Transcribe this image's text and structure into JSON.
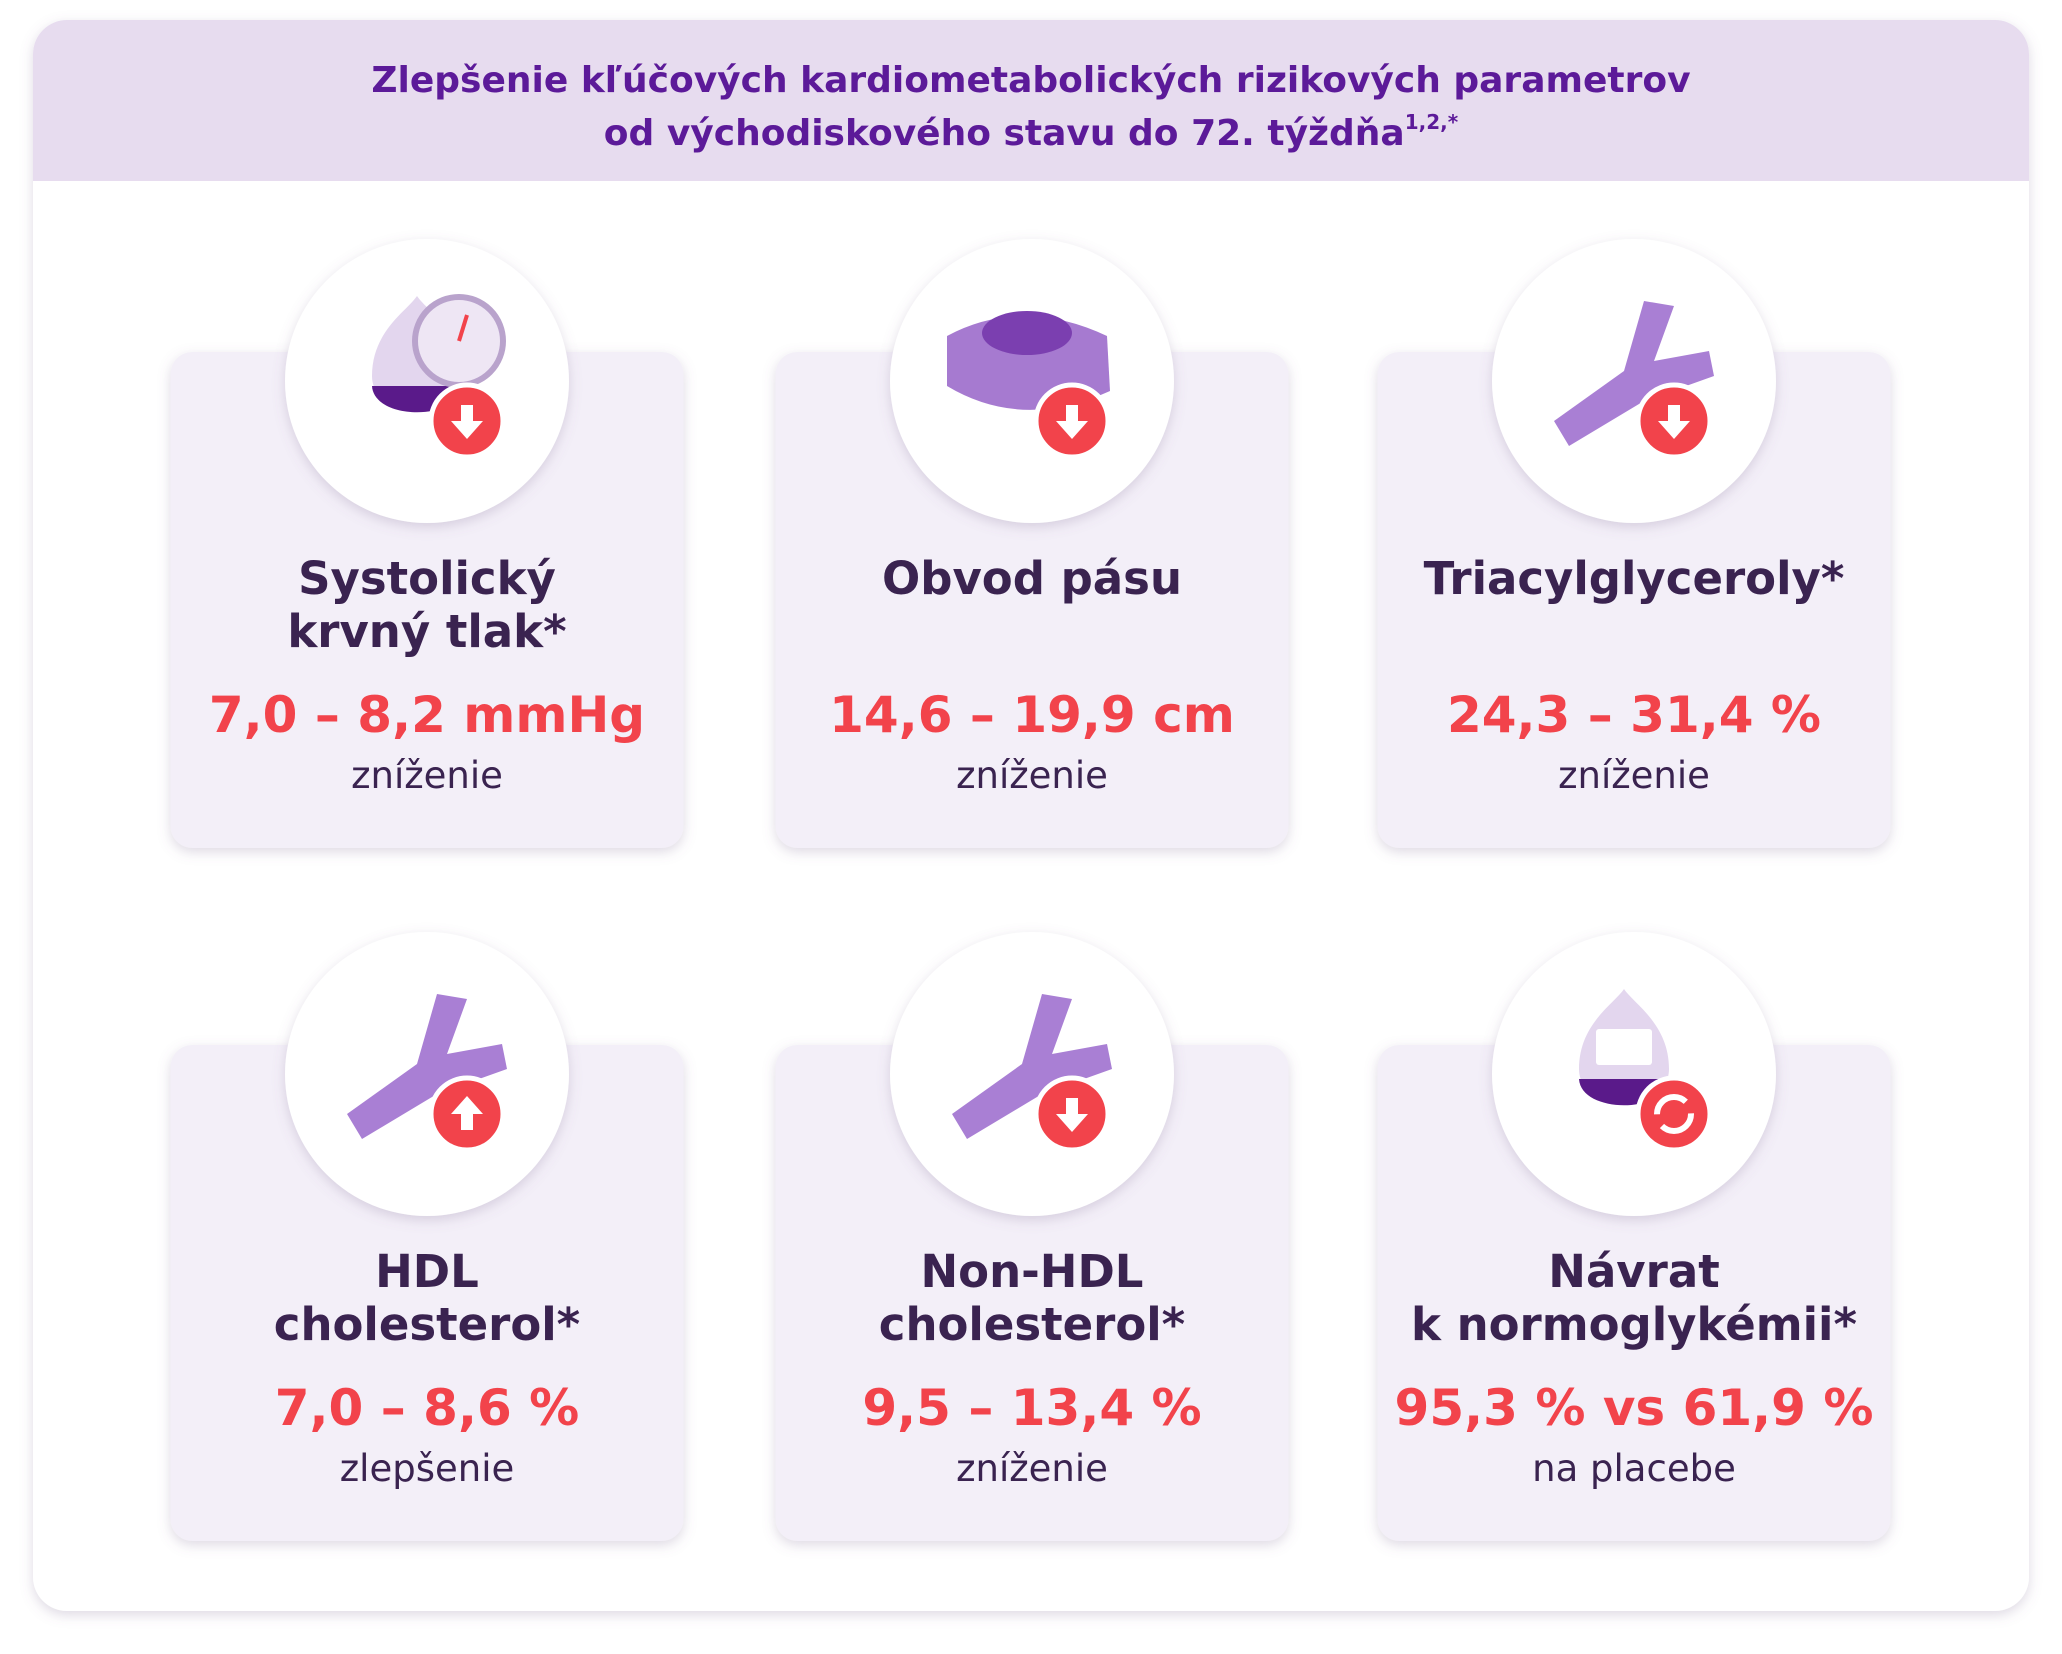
{
  "header": {
    "title": [
      "Zlepšenie kľúčových kardiometabolických rizikových parametrov",
      "od východiskového stavu do 72. týždňa"
    ],
    "superscript": "1,2,*"
  },
  "cards": [
    {
      "title": [
        "Systolický",
        "krvný tlak*"
      ],
      "value": "7,0 – 8,2 mmHg",
      "note": "zníženie"
    },
    {
      "title": [
        "Obvod pásu"
      ],
      "value": "14,6 – 19,9 cm",
      "note": "zníženie"
    },
    {
      "title": [
        "Triacylglyceroly*"
      ],
      "value": "24,3 – 31,4 %",
      "note": "zníženie"
    },
    {
      "title": [
        "HDL",
        "cholesterol*"
      ],
      "value": "7,0 – 8,6 %",
      "note": "zlepšenie"
    },
    {
      "title": [
        "Non-HDL",
        "cholesterol*"
      ],
      "value": "9,5 – 13,4 %",
      "note": "zníženie"
    },
    {
      "title": [
        "Návrat",
        "k normoglykémii*"
      ],
      "value": "95,3 % vs 61,9 %",
      "note": "na placebe"
    }
  ]
}
